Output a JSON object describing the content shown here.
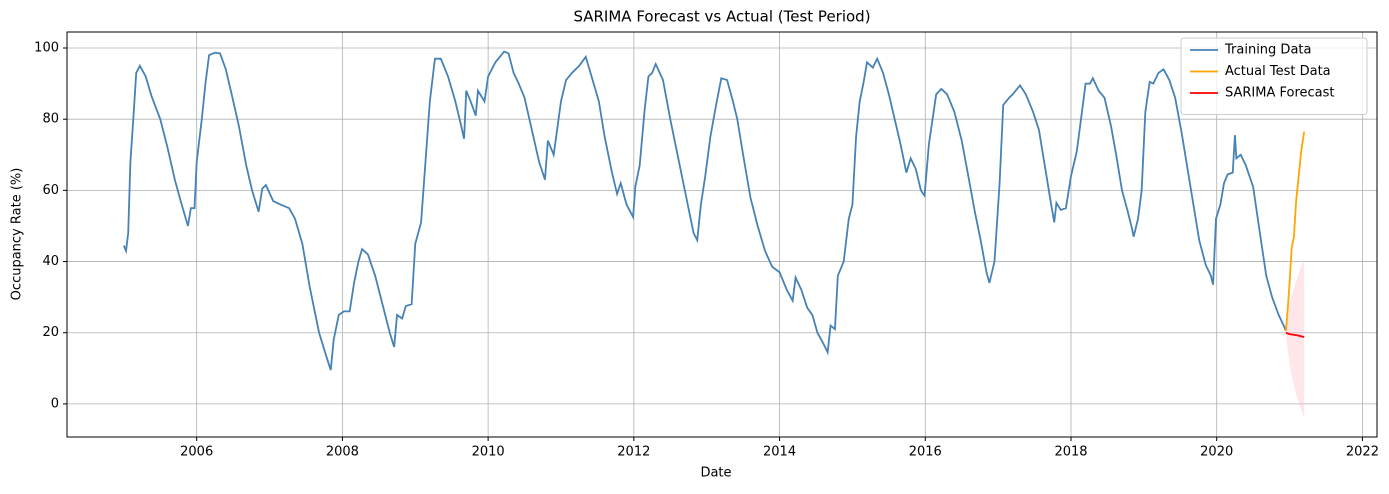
{
  "chart_data": {
    "type": "line",
    "title": "SARIMA Forecast vs Actual (Test Period)",
    "x_label": "Date",
    "y_label": "Occupancy Rate (%)",
    "xlim": [
      2004.22,
      2022.2
    ],
    "ylim": [
      -9.3,
      104.5
    ],
    "xticks": [
      2006,
      2008,
      2010,
      2012,
      2014,
      2016,
      2018,
      2020,
      2022
    ],
    "yticks": [
      0,
      20,
      40,
      60,
      80,
      100
    ],
    "grid": true,
    "legend_position": "upper right",
    "series": [
      {
        "name": "Training Data",
        "color": "#4682b4",
        "x": [
          2005.0,
          2005.03,
          2005.06,
          2005.09,
          2005.13,
          2005.17,
          2005.22,
          2005.3,
          2005.38,
          2005.5,
          2005.6,
          2005.7,
          2005.78,
          2005.88,
          2005.92,
          2005.97,
          2006.0,
          2006.07,
          2006.12,
          2006.17,
          2006.25,
          2006.32,
          2006.4,
          2006.48,
          2006.58,
          2006.68,
          2006.76,
          2006.85,
          2006.9,
          2006.95,
          2007.05,
          2007.15,
          2007.27,
          2007.35,
          2007.45,
          2007.55,
          2007.68,
          2007.8,
          2007.84,
          2007.88,
          2007.95,
          2008.02,
          2008.1,
          2008.16,
          2008.22,
          2008.27,
          2008.35,
          2008.45,
          2008.55,
          2008.65,
          2008.71,
          2008.75,
          2008.82,
          2008.87,
          2008.95,
          2009.0,
          2009.08,
          2009.14,
          2009.2,
          2009.27,
          2009.35,
          2009.45,
          2009.55,
          2009.62,
          2009.67,
          2009.7,
          2009.76,
          2009.83,
          2009.86,
          2009.95,
          2010.0,
          2010.1,
          2010.22,
          2010.28,
          2010.35,
          2010.42,
          2010.5,
          2010.6,
          2010.7,
          2010.78,
          2010.82,
          2010.9,
          2011.0,
          2011.07,
          2011.15,
          2011.25,
          2011.34,
          2011.42,
          2011.52,
          2011.6,
          2011.7,
          2011.77,
          2011.82,
          2011.9,
          2011.99,
          2012.02,
          2012.08,
          2012.15,
          2012.2,
          2012.25,
          2012.3,
          2012.4,
          2012.5,
          2012.6,
          2012.7,
          2012.78,
          2012.82,
          2012.87,
          2012.92,
          2012.98,
          2013.05,
          2013.12,
          2013.2,
          2013.28,
          2013.36,
          2013.42,
          2013.5,
          2013.6,
          2013.7,
          2013.8,
          2013.9,
          2014.0,
          2014.1,
          2014.18,
          2014.22,
          2014.3,
          2014.38,
          2014.45,
          2014.52,
          2014.6,
          2014.66,
          2014.7,
          2014.76,
          2014.8,
          2014.88,
          2014.95,
          2015.0,
          2015.05,
          2015.1,
          2015.15,
          2015.2,
          2015.28,
          2015.34,
          2015.42,
          2015.5,
          2015.58,
          2015.66,
          2015.74,
          2015.8,
          2015.87,
          2015.94,
          2015.99,
          2016.05,
          2016.1,
          2016.15,
          2016.22,
          2016.3,
          2016.4,
          2016.5,
          2016.6,
          2016.68,
          2016.76,
          2016.84,
          2016.88,
          2016.95,
          2017.02,
          2017.07,
          2017.15,
          2017.2,
          2017.3,
          2017.38,
          2017.48,
          2017.56,
          2017.64,
          2017.72,
          2017.77,
          2017.8,
          2017.86,
          2017.93,
          2018.0,
          2018.08,
          2018.15,
          2018.2,
          2018.26,
          2018.3,
          2018.38,
          2018.46,
          2018.55,
          2018.62,
          2018.7,
          2018.78,
          2018.84,
          2018.86,
          2018.92,
          2018.97,
          2019.02,
          2019.08,
          2019.13,
          2019.2,
          2019.27,
          2019.35,
          2019.43,
          2019.52,
          2019.6,
          2019.68,
          2019.76,
          2019.85,
          2019.92,
          2019.95,
          2019.99,
          2020.05,
          2020.1,
          2020.15,
          2020.22,
          2020.25,
          2020.27,
          2020.33,
          2020.4,
          2020.5,
          2020.6,
          2020.68,
          2020.76,
          2020.85,
          2020.92,
          2020.95
        ],
        "values": [
          44.5,
          43,
          48,
          68,
          80,
          93,
          95,
          92,
          86.5,
          80,
          72,
          63,
          57,
          50,
          55,
          55,
          68,
          80,
          90,
          98,
          98.7,
          98.5,
          94,
          87,
          78,
          67,
          60,
          54,
          60.5,
          61.5,
          57,
          56,
          55,
          52,
          45,
          33,
          20,
          12,
          9.5,
          18,
          25,
          26,
          26,
          34,
          40,
          43.5,
          42,
          36,
          28,
          20,
          16,
          25,
          24,
          27.5,
          28,
          45,
          51,
          68,
          85,
          97,
          97,
          92,
          85,
          79,
          74.5,
          88,
          85,
          81,
          88,
          85,
          92,
          96,
          99,
          98.5,
          93,
          90,
          86,
          77,
          68,
          63,
          74,
          70,
          85,
          91,
          93,
          95,
          97.5,
          92,
          85,
          75,
          65,
          59,
          62,
          56,
          52.5,
          61,
          67,
          83,
          92,
          93,
          95.5,
          91,
          80,
          70,
          60,
          52,
          48,
          46,
          56,
          64,
          75,
          83,
          91.5,
          91,
          85,
          80,
          70,
          58,
          50,
          43,
          38.5,
          37,
          32,
          29,
          35.5,
          32,
          27,
          25,
          20,
          17,
          14.5,
          22,
          21,
          36,
          40,
          52,
          56,
          75,
          85,
          90,
          96,
          94.5,
          97,
          93,
          87,
          80,
          73,
          65,
          69,
          66,
          60,
          58.5,
          73,
          80,
          87,
          88.5,
          87,
          82,
          74,
          63,
          54,
          46,
          37,
          34,
          40,
          62,
          84,
          86,
          87,
          89.5,
          87,
          82,
          77,
          67,
          57,
          51,
          56.5,
          54.5,
          55,
          64,
          71,
          82,
          90,
          90,
          91.5,
          88,
          86,
          78,
          70,
          60,
          54,
          49,
          47,
          52,
          60,
          82,
          90.5,
          90,
          93,
          94,
          91,
          86,
          76,
          66,
          56,
          46,
          39,
          36,
          33.5,
          52,
          56,
          62,
          64.5,
          65,
          75.5,
          69,
          70,
          67,
          61,
          47,
          36,
          30,
          25,
          22,
          20.5
        ]
      },
      {
        "name": "Actual Test Data",
        "color": "#ffa500",
        "x": [
          2020.95,
          2020.98,
          2021.0,
          2021.03,
          2021.06,
          2021.09,
          2021.12,
          2021.16,
          2021.2
        ],
        "values": [
          20.5,
          28,
          34,
          44,
          47,
          57,
          63,
          71,
          76.5
        ]
      },
      {
        "name": "SARIMA Forecast",
        "color": "#ff0000",
        "x": [
          2020.95,
          2021.0,
          2021.1,
          2021.2
        ],
        "values": [
          20,
          19.6,
          19.3,
          18.8
        ]
      }
    ],
    "confidence_band": {
      "color": "#ffc0cb",
      "x": [
        2020.95,
        2021.0,
        2021.05,
        2021.1,
        2021.15,
        2021.2
      ],
      "upper": [
        20.5,
        28,
        32,
        35,
        38,
        41
      ],
      "lower": [
        19.5,
        11,
        6,
        2,
        -1,
        -4
      ]
    }
  }
}
